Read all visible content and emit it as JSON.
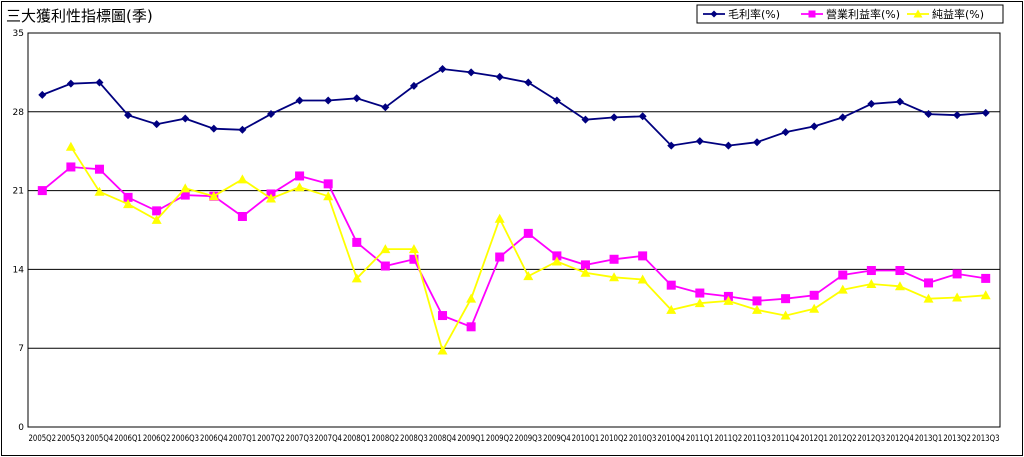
{
  "chart_data": {
    "type": "line",
    "title": "三大獲利性指標圖(季)",
    "xlabel": "",
    "ylabel": "",
    "ylim": [
      0,
      35
    ],
    "yticks": [
      0,
      7,
      14,
      21,
      28,
      35
    ],
    "grid": true,
    "legend": "top-right",
    "x": [
      "2005Q2",
      "2005Q3",
      "2005Q4",
      "2006Q1",
      "2006Q2",
      "2006Q3",
      "2006Q4",
      "2007Q1",
      "2007Q2",
      "2007Q3",
      "2007Q4",
      "2008Q1",
      "2008Q2",
      "2008Q3",
      "2008Q4",
      "2009Q1",
      "2009Q2",
      "2009Q3",
      "2009Q4",
      "2010Q1",
      "2010Q2",
      "2010Q3",
      "2010Q4",
      "2011Q1",
      "2011Q2",
      "2011Q3",
      "2011Q4",
      "2012Q1",
      "2012Q2",
      "2012Q3",
      "2012Q4",
      "2013Q1",
      "2013Q2",
      "2013Q3"
    ],
    "xtick_labels": [
      "2005Q2",
      "2005Q3",
      "2005Q4",
      "2006Q1",
      "2006Q2",
      "2006Q3",
      "2006Q4",
      "2007Q1",
      "2007Q2",
      "2007Q3",
      "2007Q4",
      "2008Q1",
      "2008Q2",
      "2008Q3",
      "2008Q4",
      "2009Q1",
      "2009Q2",
      "2009Q3",
      "2009Q4",
      "2010Q1",
      "2010Q2",
      "2010Q3",
      "2010Q4",
      "2011Q1",
      "2011Q2",
      "2011Q3",
      "2011Q4",
      "2012Q1",
      "2012Q2",
      "2012Q3",
      "2012Q4",
      "2013Q1",
      "2013Q2",
      "2013Q3"
    ],
    "series": [
      {
        "name": "毛利率(%)",
        "color": "#00007f",
        "marker": "diamond",
        "values": [
          29.5,
          30.5,
          30.6,
          27.7,
          26.9,
          27.4,
          26.5,
          26.4,
          27.8,
          29.0,
          29.0,
          29.2,
          28.4,
          30.3,
          31.8,
          31.5,
          31.1,
          30.6,
          29.0,
          27.3,
          27.5,
          27.6,
          25.0,
          25.4,
          25.0,
          25.3,
          26.2,
          26.7,
          27.5,
          28.7,
          28.9,
          27.8,
          27.7,
          27.9
        ]
      },
      {
        "name": "營業利益率(%)",
        "color": "#ff00ff",
        "marker": "square",
        "values": [
          21.0,
          23.1,
          22.9,
          20.4,
          19.2,
          20.6,
          20.5,
          18.7,
          20.7,
          22.3,
          21.6,
          16.4,
          14.3,
          14.9,
          9.9,
          8.9,
          15.1,
          17.2,
          15.2,
          14.4,
          14.9,
          15.2,
          12.6,
          11.9,
          11.6,
          11.2,
          11.4,
          11.7,
          13.5,
          13.9,
          13.9,
          12.8,
          13.6,
          13.2
        ]
      },
      {
        "name": "純益率(%)",
        "color": "#ffff00",
        "marker": "triangle",
        "values": [
          null,
          24.9,
          20.9,
          19.8,
          18.4,
          21.2,
          20.5,
          22.0,
          20.3,
          21.3,
          20.5,
          13.2,
          15.8,
          15.8,
          6.8,
          11.4,
          18.5,
          13.4,
          14.7,
          13.7,
          13.3,
          13.1,
          10.4,
          11.0,
          11.2,
          10.4,
          9.9,
          10.5,
          12.2,
          12.7,
          12.5,
          11.4,
          11.5,
          11.7
        ]
      }
    ]
  }
}
